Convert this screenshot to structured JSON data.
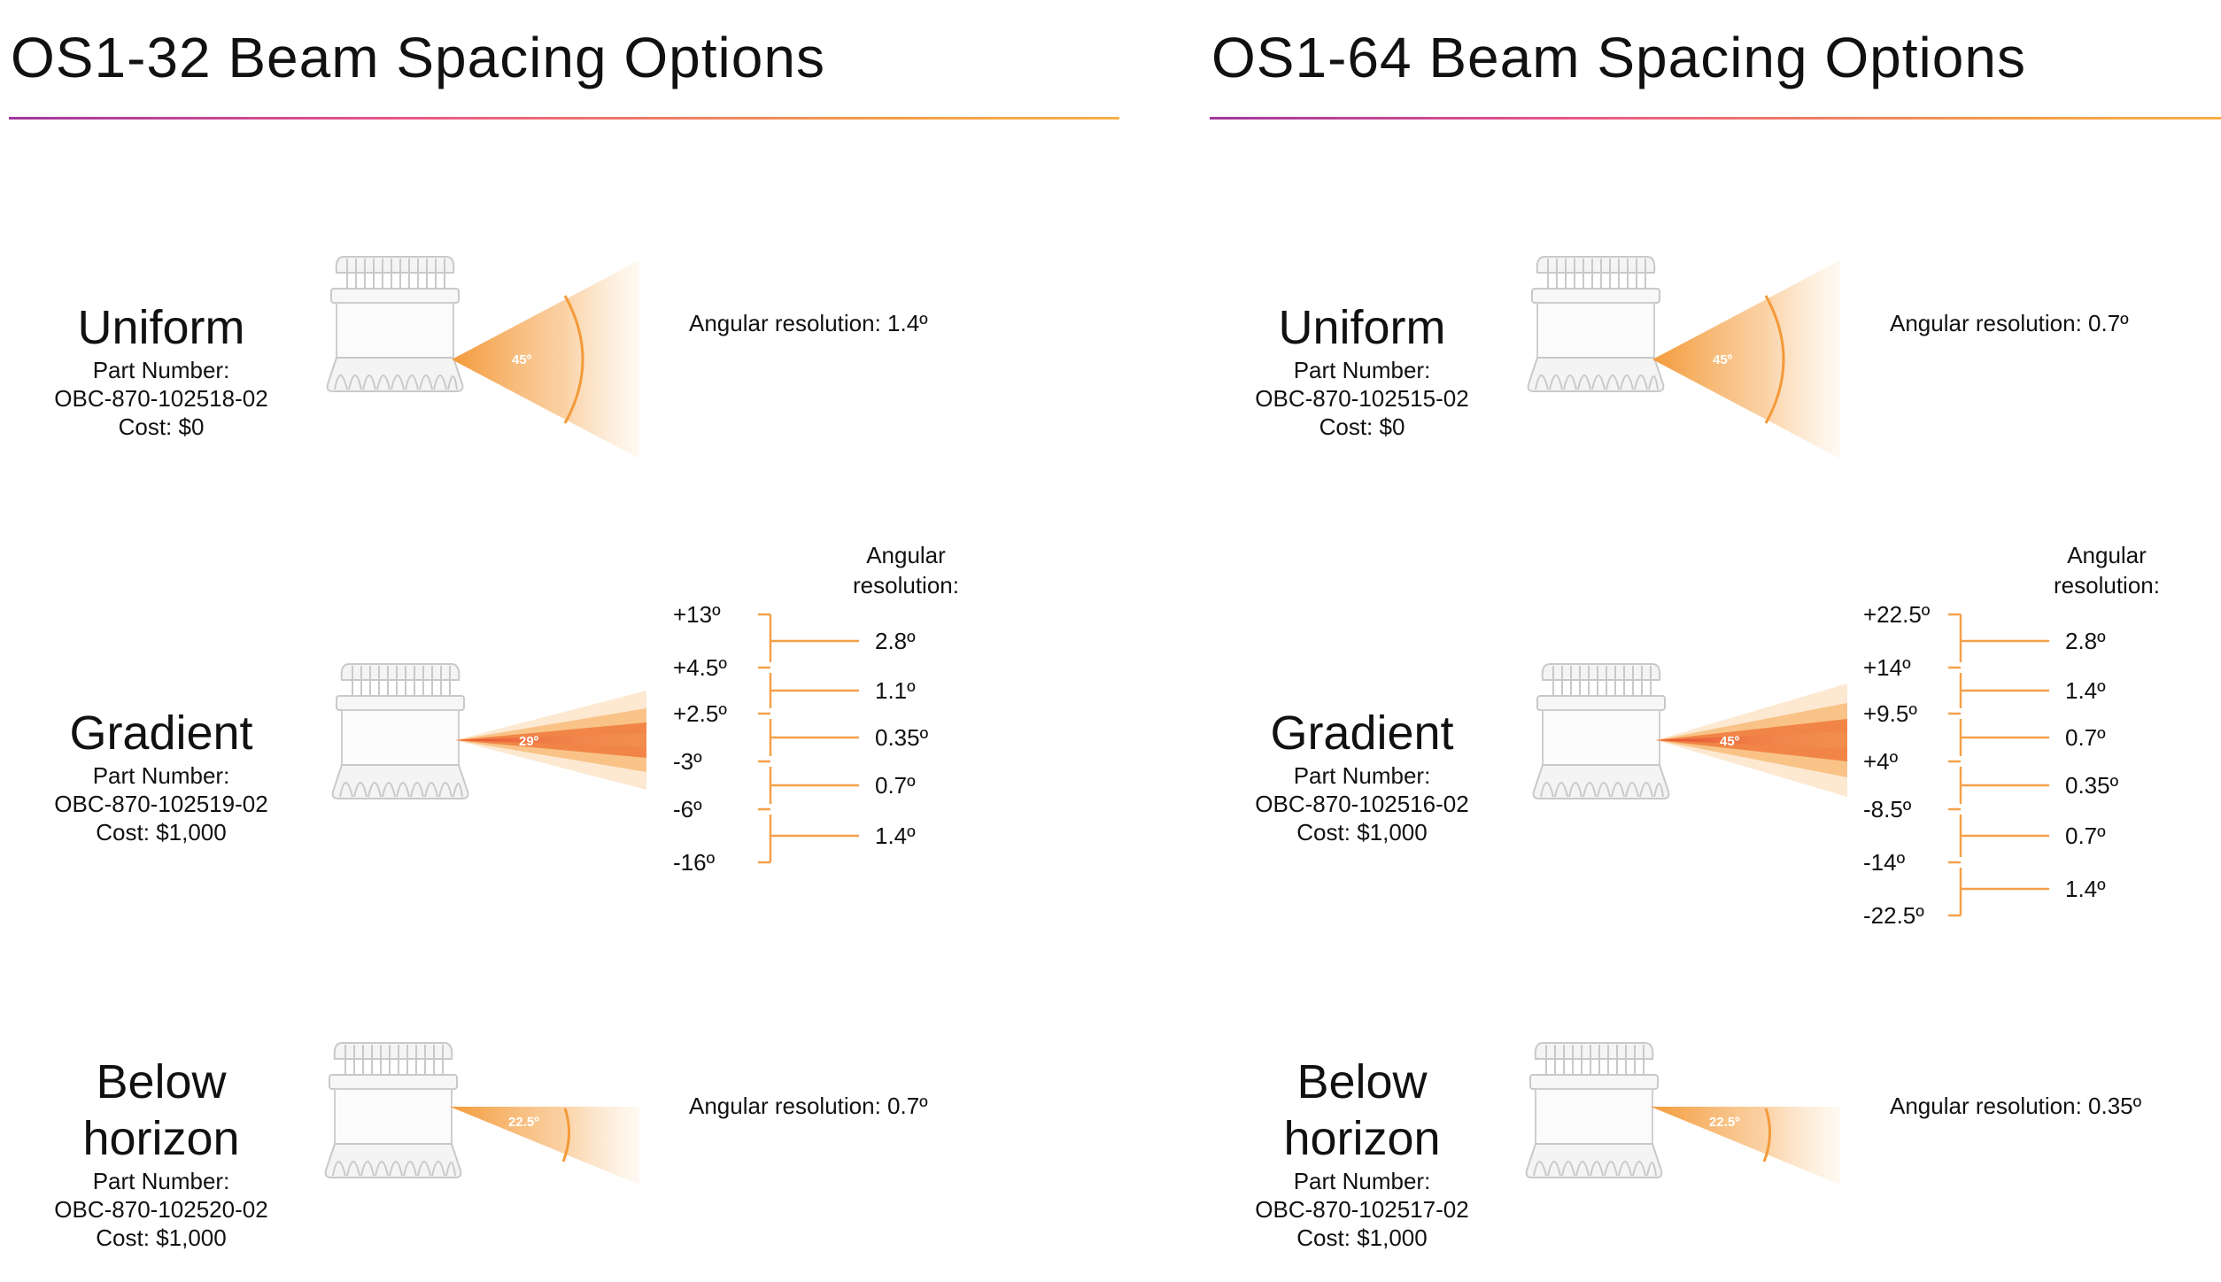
{
  "left": {
    "title": "OS1-32 Beam Spacing Options",
    "uniform": {
      "name": "Uniform",
      "part_label": "Part Number:",
      "part_number": "OBC-870-102518-02",
      "cost": "Cost: $0",
      "fov_label": "45º",
      "resolution": "Angular resolution: 1.4º"
    },
    "gradient": {
      "name": "Gradient",
      "part_label": "Part Number:",
      "part_number": "OBC-870-102519-02",
      "cost": "Cost: $1,000",
      "fov_label": "29º",
      "res_header_1": "Angular",
      "res_header_2": "resolution:",
      "angles": [
        "+13º",
        "+4.5º",
        "+2.5º",
        "-3º",
        "-6º",
        "-16º"
      ],
      "resolutions": [
        "2.8º",
        "1.1º",
        "0.35º",
        "0.7º",
        "1.4º"
      ]
    },
    "below": {
      "name_1": "Below",
      "name_2": "horizon",
      "part_label": "Part Number:",
      "part_number": "OBC-870-102520-02",
      "cost": "Cost: $1,000",
      "fov_label": "22.5º",
      "resolution": "Angular resolution: 0.7º"
    }
  },
  "right": {
    "title": "OS1-64 Beam Spacing Options",
    "uniform": {
      "name": "Uniform",
      "part_label": "Part Number:",
      "part_number": "OBC-870-102515-02",
      "cost": "Cost: $0",
      "fov_label": "45º",
      "resolution": "Angular resolution: 0.7º"
    },
    "gradient": {
      "name": "Gradient",
      "part_label": "Part Number:",
      "part_number": "OBC-870-102516-02",
      "cost": "Cost: $1,000",
      "fov_label": "45º",
      "res_header_1": "Angular",
      "res_header_2": "resolution:",
      "angles": [
        "+22.5º",
        "+14º",
        "+9.5º",
        "+4º",
        "-8.5º",
        "-14º",
        "-22.5º"
      ],
      "resolutions": [
        "2.8º",
        "1.4º",
        "0.7º",
        "0.35º",
        "0.7º",
        "1.4º"
      ]
    },
    "below": {
      "name_1": "Below",
      "name_2": "horizon",
      "part_label": "Part Number:",
      "part_number": "OBC-870-102517-02",
      "cost": "Cost: $1,000",
      "fov_label": "22.5º",
      "resolution": "Angular resolution: 0.35º"
    }
  },
  "colors": {
    "accent_orange": "#f5a04a",
    "fan_orange": "#f39a3a",
    "fan_red": "#e8552a",
    "rule_purple": "#a1379c",
    "sensor_line": "#c8c8c8"
  }
}
